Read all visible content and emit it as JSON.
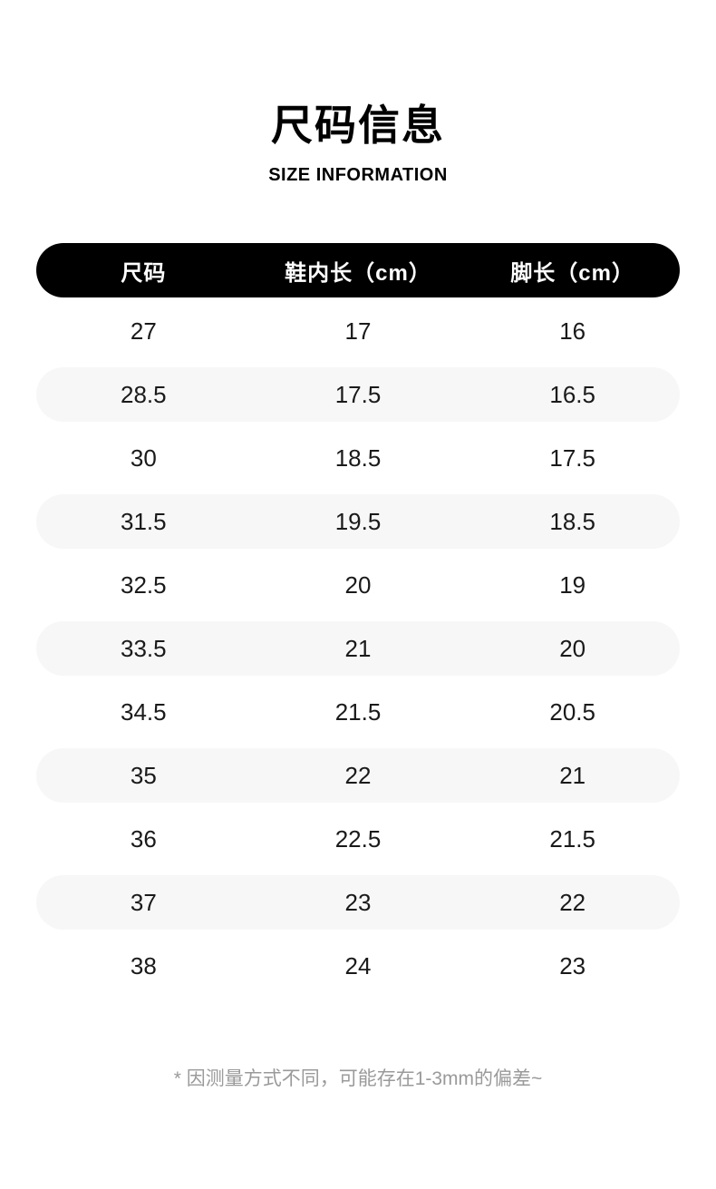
{
  "page": {
    "title": "尺码信息",
    "subtitle": "SIZE INFORMATION",
    "footnote": "* 因测量方式不同，可能存在1-3mm的偏差~"
  },
  "table": {
    "columns": [
      "尺码",
      "鞋内长（cm）",
      "脚长（cm）"
    ],
    "rows": [
      [
        "27",
        "17",
        "16"
      ],
      [
        "28.5",
        "17.5",
        "16.5"
      ],
      [
        "30",
        "18.5",
        "17.5"
      ],
      [
        "31.5",
        "19.5",
        "18.5"
      ],
      [
        "32.5",
        "20",
        "19"
      ],
      [
        "33.5",
        "21",
        "20"
      ],
      [
        "34.5",
        "21.5",
        "20.5"
      ],
      [
        "35",
        "22",
        "21"
      ],
      [
        "36",
        "22.5",
        "21.5"
      ],
      [
        "37",
        "23",
        "22"
      ],
      [
        "38",
        "24",
        "23"
      ]
    ]
  },
  "colors": {
    "header_bg": "#000000",
    "header_text": "#ffffff",
    "row_alt_bg": "#f7f7f7",
    "body_text": "#1a1a1a",
    "footnote_text": "#9a9a9a"
  }
}
